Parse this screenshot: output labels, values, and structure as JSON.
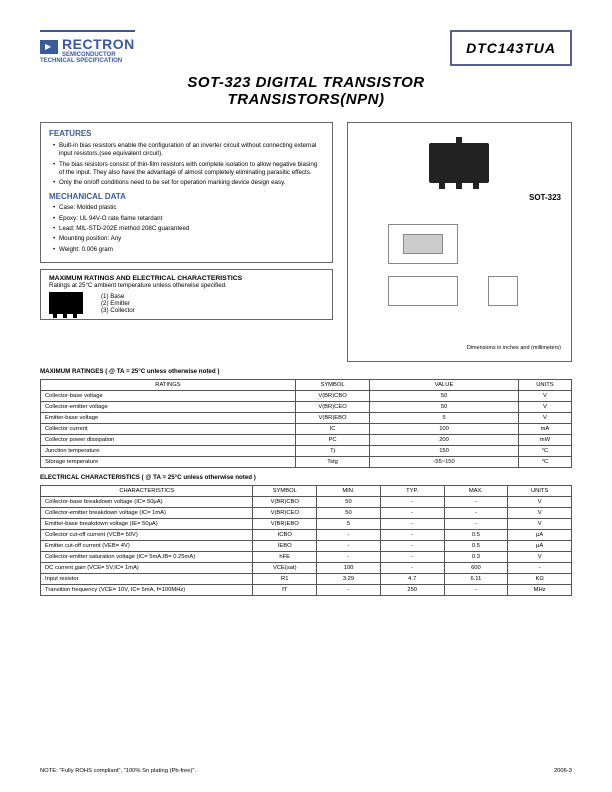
{
  "header": {
    "brand": "RECTRON",
    "brand_sub1": "SEMICONDUCTOR",
    "brand_sub2": "TECHNICAL SPECIFICATION",
    "part_number": "DTC143TUA"
  },
  "title_line1": "SOT-323 DIGITAL TRANSISTOR",
  "title_line2": "TRANSISTORS(NPN)",
  "features": {
    "heading": "FEATURES",
    "items": [
      "Built-in bias resistors enable the configuration of an inverter circuit without connecting external input resistors.(see equivalent circuit).",
      "The bias resistors consist of thin-film resistors with complete isolation to allow negative biasing of the input. They also have the advantage of almost completely eliminating parasitic effects.",
      "Only the on/off conditions need to be set for operation marking device design easy."
    ],
    "mech_heading": "MECHANICAL DATA",
    "mech_items": [
      "Case: Molded plastic",
      "Epoxy: UL 94V-O rate flame retardant",
      "Lead: MIL-STD-202E method 208C guaranteed",
      "Mounting position: Any",
      "Weight: 0.006 gram"
    ]
  },
  "ratings_box": {
    "heading": "MAXIMUM RATINGS AND ELECTRICAL CHARACTERISTICS",
    "sub": "Ratings at 25°C ambient temperature unless otherwise specified.",
    "pins": "(1) Base\n(2) Emitter\n(3) Collector"
  },
  "package": {
    "label": "SOT-323",
    "dim_note": "Dimensions in inches and (millimeters)"
  },
  "max_ratings": {
    "title": "MAXIMUM RATINGES ( @ TA = 25°C unless otherwise noted )",
    "cols": [
      "RATINGS",
      "SYMBOL",
      "VALUE",
      "UNITS"
    ],
    "rows": [
      [
        "Collector-base voltage",
        "V(BR)CBO",
        "50",
        "V"
      ],
      [
        "Collector-emitter voltage",
        "V(BR)CEO",
        "50",
        "V"
      ],
      [
        "Emitter-base voltage",
        "V(BR)EBO",
        "5",
        "V"
      ],
      [
        "Collector current",
        "IC",
        "100",
        "mA"
      ],
      [
        "Collector power dissipation",
        "PC",
        "200",
        "mW"
      ],
      [
        "Junction temperature",
        "Tj",
        "150",
        "°C"
      ],
      [
        "Storage temperature",
        "Tstg",
        "-55~150",
        "°C"
      ]
    ]
  },
  "elec": {
    "title": "ELECTRICAL CHARACTERISTICS ( @ TA = 25°C unless otherwise noted )",
    "cols": [
      "CHARACTERISTICS",
      "SYMBOL",
      "MIN.",
      "TYP.",
      "MAX.",
      "UNITS"
    ],
    "rows": [
      [
        "Collector-base breakdown voltage (IC= 50μA)",
        "V(BR)CBO",
        "50",
        "-",
        "-",
        "V"
      ],
      [
        "Collector-emitter breakdown voltage (IC= 1mA)",
        "V(BR)CEO",
        "50",
        "-",
        "-",
        "V"
      ],
      [
        "Emitter-base breakdown voltage (IE= 50μA)",
        "V(BR)EBO",
        "5",
        "-",
        "-",
        "V"
      ],
      [
        "Collector cut-off current (VCB= 50V)",
        "ICBO",
        "-",
        "-",
        "0.5",
        "μA"
      ],
      [
        "Emitter cut-off current (VEB= 4V)",
        "IEBO",
        "-",
        "-",
        "0.5",
        "μA"
      ],
      [
        "Collector-emitter saturation voltage (IC= 5mA,IB= 0.25mA)",
        "hFE",
        "-",
        "-",
        "0.3",
        "V"
      ],
      [
        "DC current gain (VCE= 5V,IC= 1mA)",
        "VCE(sat)",
        "100",
        "-",
        "600",
        "-"
      ],
      [
        "Input resistor",
        "R1",
        "3.29",
        "4.7",
        "6.11",
        "KΩ"
      ],
      [
        "Transition frequency (VCE= 10V, IC= 5mA, f=100MHz)",
        "fT",
        "-",
        "250",
        "-",
        "MHz"
      ]
    ]
  },
  "footer": {
    "note": "NOTE: \"Fully ROHS compliant\", \"100% Sn plating (Pb-free)\".",
    "rev": "2006-3"
  }
}
